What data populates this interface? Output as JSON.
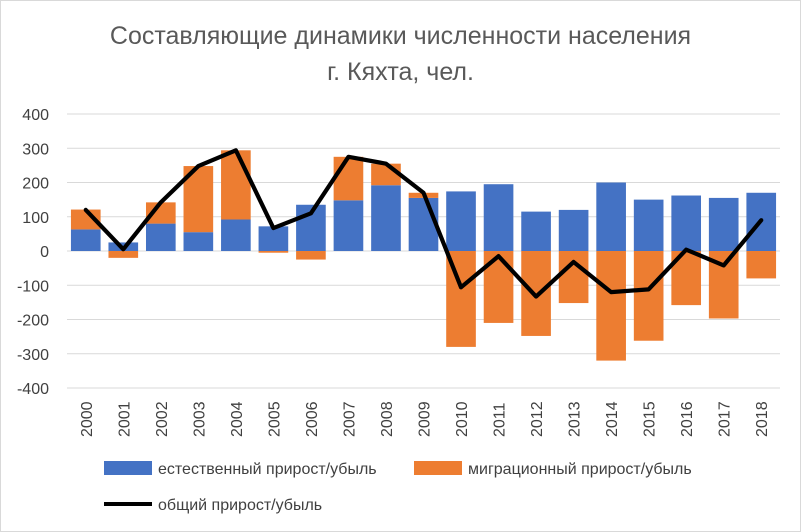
{
  "chart_data": {
    "type": "bar",
    "title": "Составляющие динамики численности населения г. Кяхта, чел.",
    "title_lines": [
      "Составляющие динамики численности населения",
      "г. Кяхта, чел."
    ],
    "xlabel": "",
    "ylabel": "",
    "ylim": [
      -400,
      400
    ],
    "yticks": [
      400,
      300,
      200,
      100,
      0,
      -100,
      -200,
      -300,
      -400
    ],
    "categories": [
      "2000",
      "2001",
      "2002",
      "2003",
      "2004",
      "2005",
      "2006",
      "2007",
      "2008",
      "2009",
      "2010",
      "2011",
      "2012",
      "2013",
      "2014",
      "2015",
      "2016",
      "2017",
      "2018"
    ],
    "stacked": true,
    "grid": true,
    "legend_position": "bottom",
    "series": [
      {
        "name": "естественный прирост/убыль",
        "kind": "bar",
        "color": "#4472c4",
        "values": [
          63,
          25,
          80,
          55,
          92,
          72,
          135,
          148,
          192,
          155,
          174,
          195,
          115,
          120,
          200,
          150,
          162,
          155,
          170
        ]
      },
      {
        "name": "миграционный прирост/убыль",
        "kind": "bar",
        "color": "#ed7d31",
        "values": [
          58,
          -20,
          62,
          193,
          202,
          -5,
          -25,
          127,
          63,
          15,
          -280,
          -210,
          -248,
          -152,
          -320,
          -262,
          -158,
          -197,
          -80
        ]
      },
      {
        "name": "общий прирост/убыль",
        "kind": "line",
        "color": "#000000",
        "values": [
          120,
          5,
          142,
          248,
          294,
          67,
          110,
          275,
          255,
          170,
          -106,
          -15,
          -133,
          -32,
          -120,
          -112,
          4,
          -42,
          90
        ]
      }
    ]
  }
}
